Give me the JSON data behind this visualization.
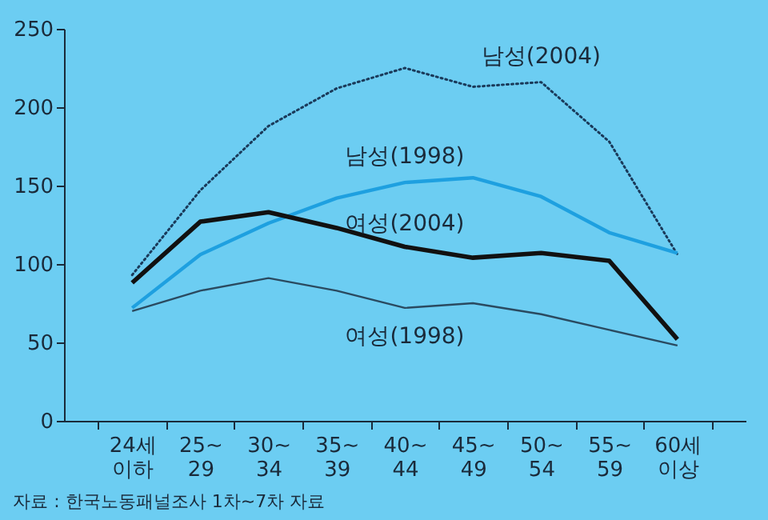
{
  "chart_data": {
    "type": "line",
    "categories": [
      "24세 이하",
      "25~ 29",
      "30~ 34",
      "35~ 39",
      "40~ 44",
      "45~ 49",
      "50~ 54",
      "55~ 59",
      "60세 이상"
    ],
    "series": [
      {
        "name": "남성(2004)",
        "color": "#1a3a5a",
        "line_style": "dotted",
        "values": [
          93,
          147,
          188,
          212,
          225,
          213,
          216,
          178,
          106
        ]
      },
      {
        "name": "남성(1998)",
        "color": "#1ea0e0",
        "line_style": "solid",
        "values": [
          72,
          106,
          126,
          142,
          152,
          155,
          143,
          120,
          107
        ]
      },
      {
        "name": "여성(2004)",
        "color": "#111111",
        "line_style": "solid",
        "values": [
          88,
          127,
          133,
          123,
          111,
          104,
          107,
          102,
          52
        ]
      },
      {
        "name": "여성(1998)",
        "color": "#2a4a60",
        "line_style": "solid",
        "values": [
          70,
          83,
          91,
          83,
          72,
          75,
          68,
          58,
          48
        ]
      }
    ],
    "ylim": [
      0,
      250
    ],
    "yticks": [
      0,
      50,
      100,
      150,
      200,
      250
    ],
    "grid": false,
    "marker": "none",
    "annotations": [
      "자료 : 한국노동패널조사 1차~7차 자료"
    ]
  }
}
